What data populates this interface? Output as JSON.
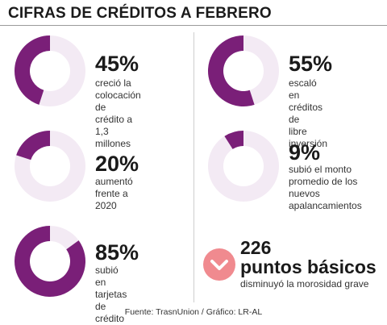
{
  "colors": {
    "accent": "#7a1f78",
    "track": "#f3eaf4",
    "down_badge": "#f08a8f"
  },
  "title": "CIFRAS DE CRÉDITOS A FEBRERO",
  "chart_data": {
    "type": "pie",
    "title": "CIFRAS DE CRÉDITOS A FEBRERO",
    "items": [
      {
        "label": "45%",
        "value": 45,
        "description": "creció la colocación de\ncrédito a 1,3 millones"
      },
      {
        "label": "55%",
        "value": 55,
        "description": "escaló en créditos de\nlibre inversión"
      },
      {
        "label": "20%",
        "value": 20,
        "description": "aumentó frente a 2020"
      },
      {
        "label": "9%",
        "value": 9,
        "description": "subió el monto\npromedio de los nuevos\napalancamientos"
      },
      {
        "label": "85%",
        "value": 85,
        "description": "subió en tarjetas de\ncrédito"
      }
    ]
  },
  "basis_points": {
    "icon": "chevron-down-icon",
    "number": "226",
    "unit": "puntos básicos",
    "description": "disminuyó la morosidad grave"
  },
  "source": "Fuente: TrasnUnion / Gráfico: LR-AL"
}
